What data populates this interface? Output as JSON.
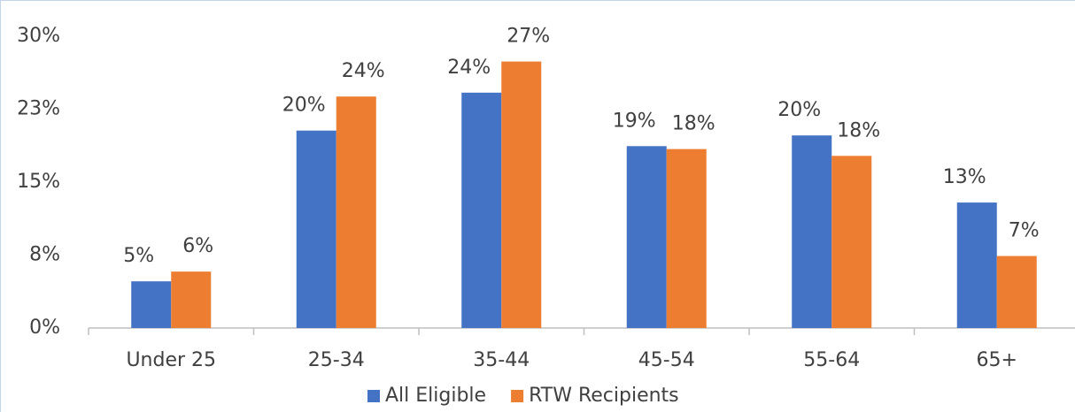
{
  "chart_data": {
    "type": "bar",
    "categories": [
      "Under 25",
      "25-34",
      "35-44",
      "45-54",
      "55-64",
      "65+"
    ],
    "series": [
      {
        "name": "All Eligible",
        "color": "#4472c4",
        "values": [
          4.8,
          20.3,
          24.2,
          18.7,
          19.8,
          12.9
        ],
        "value_labels": [
          "5%",
          "20%",
          "24%",
          "19%",
          "20%",
          "13%"
        ]
      },
      {
        "name": "RTW Recipients",
        "color": "#ed7d31",
        "values": [
          5.8,
          23.8,
          27.4,
          18.4,
          17.7,
          7.4
        ],
        "value_labels": [
          "6%",
          "24%",
          "27%",
          "18%",
          "18%",
          "7%"
        ]
      }
    ],
    "ylim": [
      0,
      30
    ],
    "yticks": [
      {
        "value": 0,
        "label": "0%"
      },
      {
        "value": 7.5,
        "label": "8%"
      },
      {
        "value": 15,
        "label": "15%"
      },
      {
        "value": 22.5,
        "label": "23%"
      },
      {
        "value": 30,
        "label": "30%"
      }
    ],
    "grid": false,
    "legend": "bottom"
  }
}
